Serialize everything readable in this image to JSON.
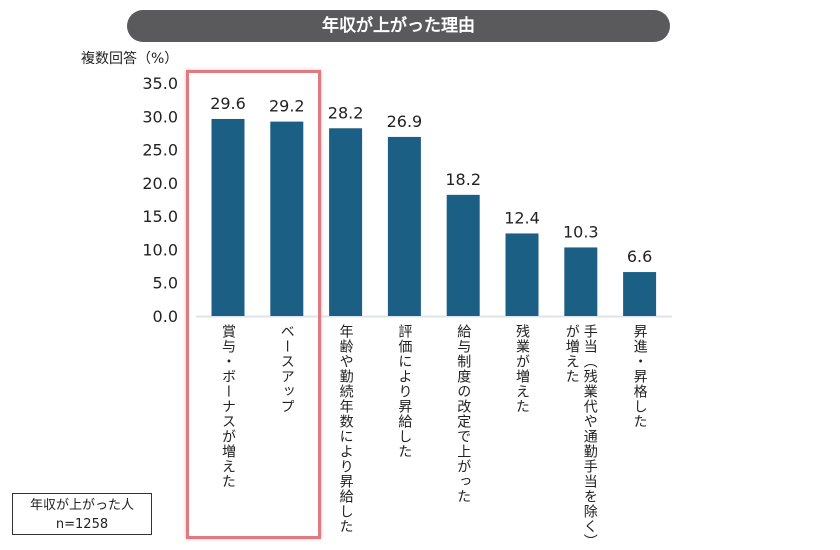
{
  "chart_data": {
    "type": "bar",
    "title": "年収が上がった理由",
    "ylabel": "複数回答（%）",
    "xlabel": "",
    "ylim": [
      0,
      35
    ],
    "yticks": [
      "0.0",
      "5.0",
      "10.0",
      "15.0",
      "20.0",
      "25.0",
      "30.0",
      "35.0"
    ],
    "grid": false,
    "categories": [
      "賞与・ボーナスが増えた",
      "ベースアップ",
      "年齢や勤続年数により昇給した",
      "評価により昇給した",
      "給与制度の改定で上がった",
      "残業が増えた",
      "手当（残業代や通勤手当を除く）\nが増えた",
      "昇進・昇格した"
    ],
    "values": [
      29.6,
      29.2,
      28.2,
      26.9,
      18.2,
      12.4,
      10.3,
      6.6
    ],
    "data_labels": [
      "29.6",
      "29.2",
      "28.2",
      "26.9",
      "18.2",
      "12.4",
      "10.3",
      "6.6"
    ],
    "highlighted_categories": [
      "賞与・ボーナスが増えた",
      "ベースアップ"
    ],
    "colors": {
      "bar": "#1b5f84",
      "highlight_box": "#e07a80",
      "title_bg": "#5a595b"
    }
  },
  "sample_note": {
    "line1": "年収が上がった人",
    "line2": "n=1258"
  }
}
